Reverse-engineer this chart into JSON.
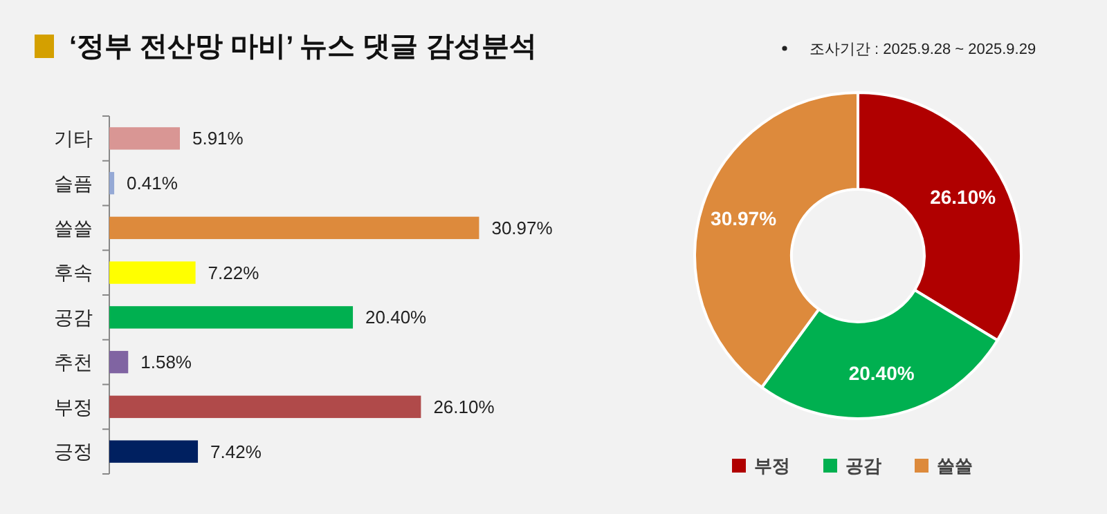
{
  "chart_data": [
    {
      "type": "bar",
      "orientation": "horizontal",
      "title": "‘정부 전산망 마비’ 뉴스 댓글 감성분석",
      "categories": [
        "기타",
        "슬픔",
        "쓸쓸",
        "후속",
        "공감",
        "추천",
        "부정",
        "긍정"
      ],
      "values": [
        5.91,
        0.41,
        30.97,
        7.22,
        20.4,
        1.58,
        26.1,
        7.42
      ],
      "colors": [
        "#d99694",
        "#95a9d5",
        "#dd8a3c",
        "#ffff00",
        "#00b050",
        "#8064a2",
        "#b04a4a",
        "#002060"
      ],
      "value_labels": [
        "5.91%",
        "0.41%",
        "30.97%",
        "7.22%",
        "20.40%",
        "1.58%",
        "26.10%",
        "7.42%"
      ],
      "tick_labels": "y"
    },
    {
      "type": "donut",
      "subtitle": "조사기간 : 2025.9.28 ~ 2025.9.29",
      "categories": [
        "부정",
        "공감",
        "쓸쓸"
      ],
      "values": [
        26.1,
        20.4,
        30.97
      ],
      "colors": [
        "#b00000",
        "#00b050",
        "#dd8a3c"
      ],
      "value_labels": [
        "26.10%",
        "20.40%",
        "30.97%"
      ],
      "legend": "bottom"
    }
  ]
}
